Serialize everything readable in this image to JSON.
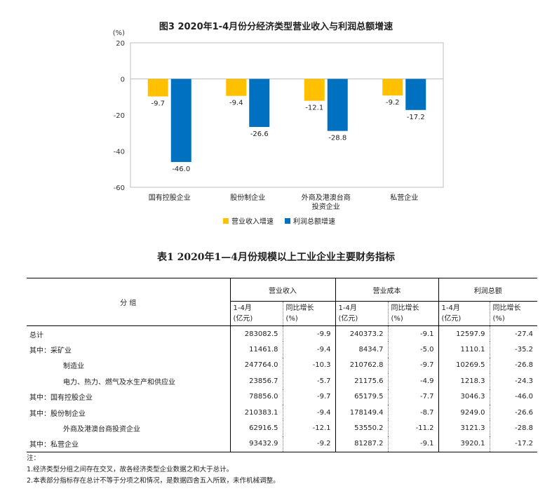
{
  "figure": {
    "title": "图3  2020年1-4月份分经济类型营业收入与利润总额增速",
    "y_unit": "(%)",
    "legend": [
      {
        "label": "营业收入增速",
        "color": "#FFC000"
      },
      {
        "label": "利润总额增速",
        "color": "#0070C0"
      }
    ]
  },
  "chart_data": {
    "type": "bar",
    "title": "图3  2020年1-4月份分经济类型营业收入与利润总额增速",
    "ylabel": "(%)",
    "xlabel": "",
    "ylim": [
      -60,
      20
    ],
    "yticks": [
      20,
      0,
      -20,
      -40,
      -60
    ],
    "grid": false,
    "legend_position": "bottom",
    "categories": [
      [
        "国有控股企业"
      ],
      [
        "股份制企业"
      ],
      [
        "外商及港澳台商",
        "投资企业"
      ],
      [
        "私营企业"
      ]
    ],
    "series": [
      {
        "name": "营业收入增速",
        "color": "#FFC000",
        "values": [
          -9.7,
          -9.4,
          -12.1,
          -9.2
        ]
      },
      {
        "name": "利润总额增速",
        "color": "#0070C0",
        "values": [
          -46.0,
          -26.6,
          -28.8,
          -17.2
        ]
      }
    ]
  },
  "table": {
    "title": "表1  2020年1—4月份规模以上工业企业主要财务指标",
    "group_header": "分    组",
    "columns": [
      {
        "group": "营业收入",
        "value_label": "1-4月",
        "value_unit": "(亿元)",
        "growth_label": "同比增长",
        "growth_unit": "(%)"
      },
      {
        "group": "营业成本",
        "value_label": "1-4月",
        "value_unit": "(亿元)",
        "growth_label": "同比增长",
        "growth_unit": "(%)"
      },
      {
        "group": "利润总额",
        "value_label": "1-4月",
        "value_unit": "(亿元)",
        "growth_label": "同比增长",
        "growth_unit": "(%)"
      }
    ],
    "rows": [
      {
        "label": "总计",
        "indent": 0,
        "cells": [
          "283082.5",
          "-9.9",
          "240373.2",
          "-9.1",
          "12597.9",
          "-27.4"
        ]
      },
      {
        "label": "其中：采矿业",
        "indent": 0,
        "cells": [
          "11461.8",
          "-9.4",
          "8434.7",
          "-5.0",
          "1110.1",
          "-35.2"
        ]
      },
      {
        "label": "制造业",
        "indent": 1,
        "cells": [
          "247764.0",
          "-10.3",
          "210762.8",
          "-9.7",
          "10269.5",
          "-26.8"
        ]
      },
      {
        "label": "电力、热力、燃气及水生产和供应业",
        "indent": 1,
        "cells": [
          "23856.7",
          "-5.7",
          "21175.6",
          "-4.9",
          "1218.3",
          "-24.3"
        ]
      },
      {
        "label": "其中：国有控股企业",
        "indent": 0,
        "cells": [
          "78856.0",
          "-9.7",
          "65179.5",
          "-7.7",
          "3046.3",
          "-46.0"
        ]
      },
      {
        "label": "其中：股份制企业",
        "indent": 0,
        "cells": [
          "210383.1",
          "-9.4",
          "178149.4",
          "-8.7",
          "9249.0",
          "-26.6"
        ]
      },
      {
        "label": "外商及港澳台商投资企业",
        "indent": 1,
        "cells": [
          "62916.5",
          "-12.1",
          "53550.2",
          "-11.2",
          "3121.3",
          "-28.8"
        ]
      },
      {
        "label": "其中：私营企业",
        "indent": 0,
        "cells": [
          "93432.9",
          "-9.2",
          "81287.2",
          "-9.1",
          "3920.1",
          "-17.2"
        ]
      }
    ]
  },
  "notes": [
    "注：",
    "1.经济类型分组之间存在交叉，故各经济类型企业数据之和大于总计。",
    "2.本表部分指标存在总计不等于分项之和情况，是数据四舍五入所致，未作机械调整。"
  ]
}
